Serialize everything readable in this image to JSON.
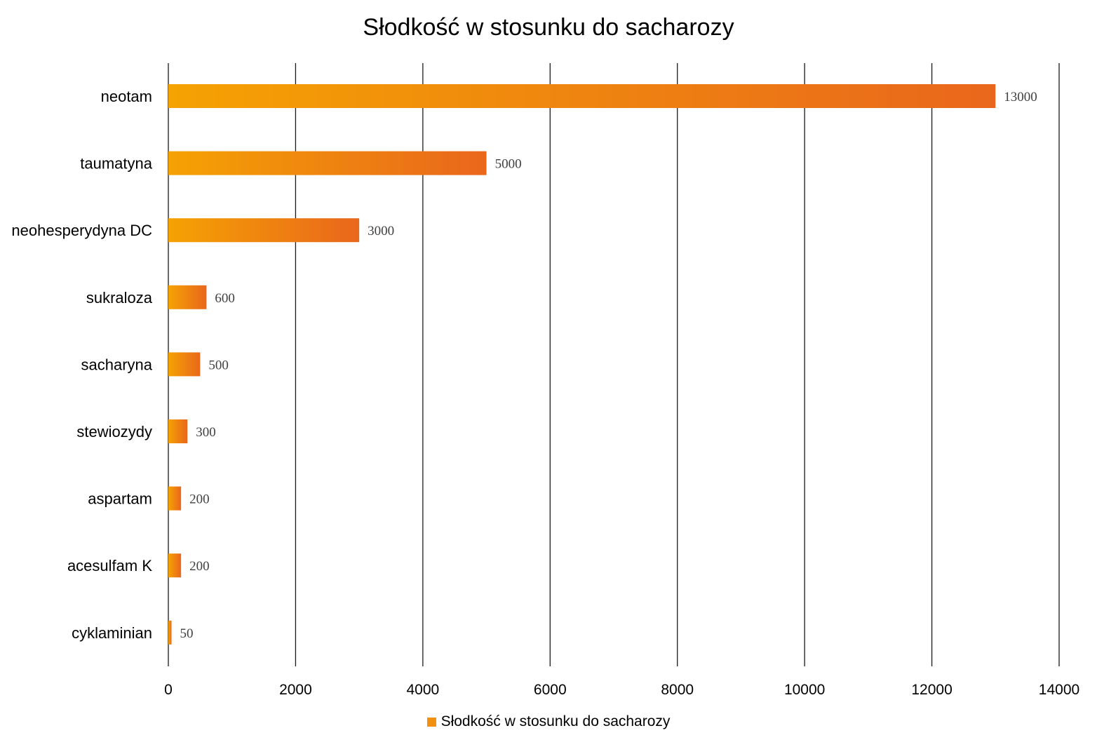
{
  "colors": {
    "bar_start": "#f5a203",
    "bar_end": "#e9671c",
    "legend_swatch": "#f29111",
    "gridline": "#1a1a1a"
  },
  "chart_data": {
    "type": "bar",
    "orientation": "horizontal",
    "title": "Słodkość w stosunku do sacharozy",
    "categories": [
      "neotam",
      "taumatyna",
      "neohesperydyna DC",
      "sukraloza",
      "sacharyna",
      "stewiozydy",
      "aspartam",
      "acesulfam K",
      "cyklaminian"
    ],
    "series": [
      {
        "name": "Słodkość w stosunku do sacharozy",
        "values": [
          13000,
          5000,
          3000,
          600,
          500,
          300,
          200,
          200,
          50
        ]
      }
    ],
    "xlim": [
      0,
      14000
    ],
    "x_ticks": [
      0,
      2000,
      4000,
      6000,
      8000,
      10000,
      12000,
      14000
    ],
    "grid": "vertical",
    "legend_position": "bottom",
    "data_labels": true
  }
}
